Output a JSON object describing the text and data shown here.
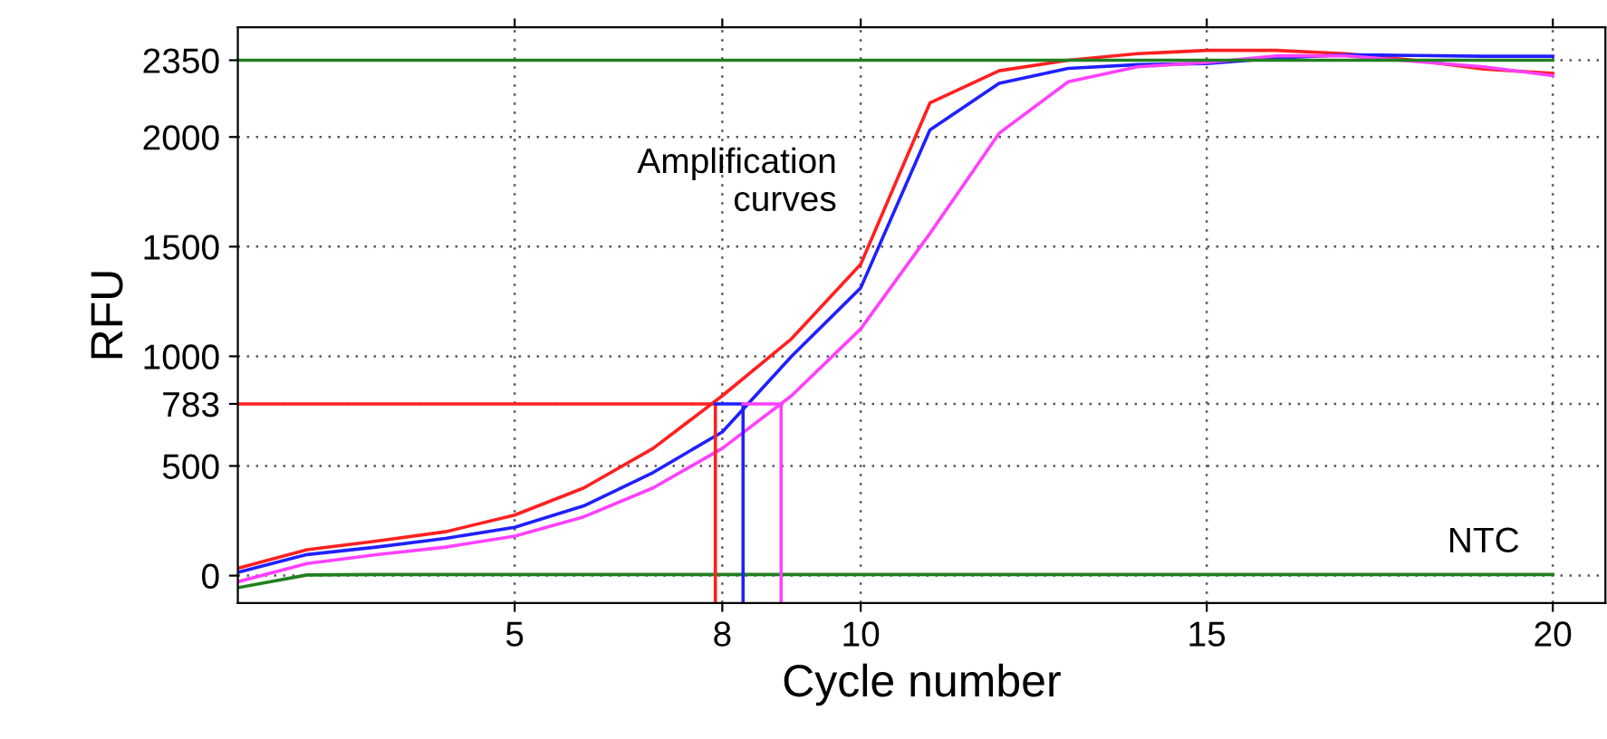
{
  "chart_data": {
    "type": "line",
    "xlabel": "Cycle number",
    "ylabel": "RFU",
    "x": [
      1,
      2,
      3,
      4,
      5,
      6,
      7,
      8,
      9,
      10,
      11,
      12,
      13,
      14,
      15,
      16,
      17,
      18,
      19,
      20
    ],
    "series": [
      {
        "color": "#ff2020",
        "values": [
          33,
          118,
          157,
          200,
          276,
          400,
          580,
          820,
          1080,
          1420,
          2155,
          2302,
          2350,
          2380,
          2395,
          2395,
          2380,
          2350,
          2310,
          2290
        ]
      },
      {
        "color": "#2020ff",
        "values": [
          15,
          96,
          130,
          170,
          220,
          318,
          470,
          655,
          1000,
          1312,
          2032,
          2245,
          2313,
          2330,
          2335,
          2360,
          2375,
          2372,
          2368,
          2368
        ]
      },
      {
        "color": "#ff40ff",
        "values": [
          -28,
          55,
          95,
          130,
          180,
          268,
          400,
          580,
          820,
          1125,
          1560,
          2017,
          2252,
          2320,
          2340,
          2370,
          2370,
          2345,
          2320,
          2280
        ]
      },
      {
        "color": "#208020",
        "values": [
          -55,
          3,
          5,
          5,
          5,
          5,
          5,
          5,
          5,
          5,
          5,
          5,
          5,
          5,
          5,
          5,
          5,
          5,
          5,
          5
        ]
      },
      {
        "color": "#208020",
        "x": [
          1,
          20
        ],
        "values": [
          2350,
          2350
        ]
      },
      {
        "color": "#ff2020",
        "x": [
          1,
          7.9,
          7.9
        ],
        "values": [
          783,
          783,
          -125
        ]
      },
      {
        "color": "#2020ff",
        "x": [
          7.9,
          8.3,
          8.3
        ],
        "values": [
          783,
          783,
          -125
        ]
      },
      {
        "color": "#ff40ff",
        "x": [
          8.3,
          8.85,
          8.85
        ],
        "values": [
          783,
          783,
          -125
        ]
      }
    ],
    "xlim": [
      1,
      20.76
    ],
    "xticks": [
      5,
      8,
      10,
      15,
      20
    ],
    "ylim": [
      -125,
      2500
    ],
    "yticks": [
      0,
      500,
      783,
      1000,
      1500,
      2000,
      2350
    ],
    "grid": true,
    "marker": "none",
    "line_style": "solid",
    "annotations": [
      "Amplification\ncurves",
      {
        "text": "NTC",
        "x": 19,
        "y": 5
      }
    ]
  }
}
